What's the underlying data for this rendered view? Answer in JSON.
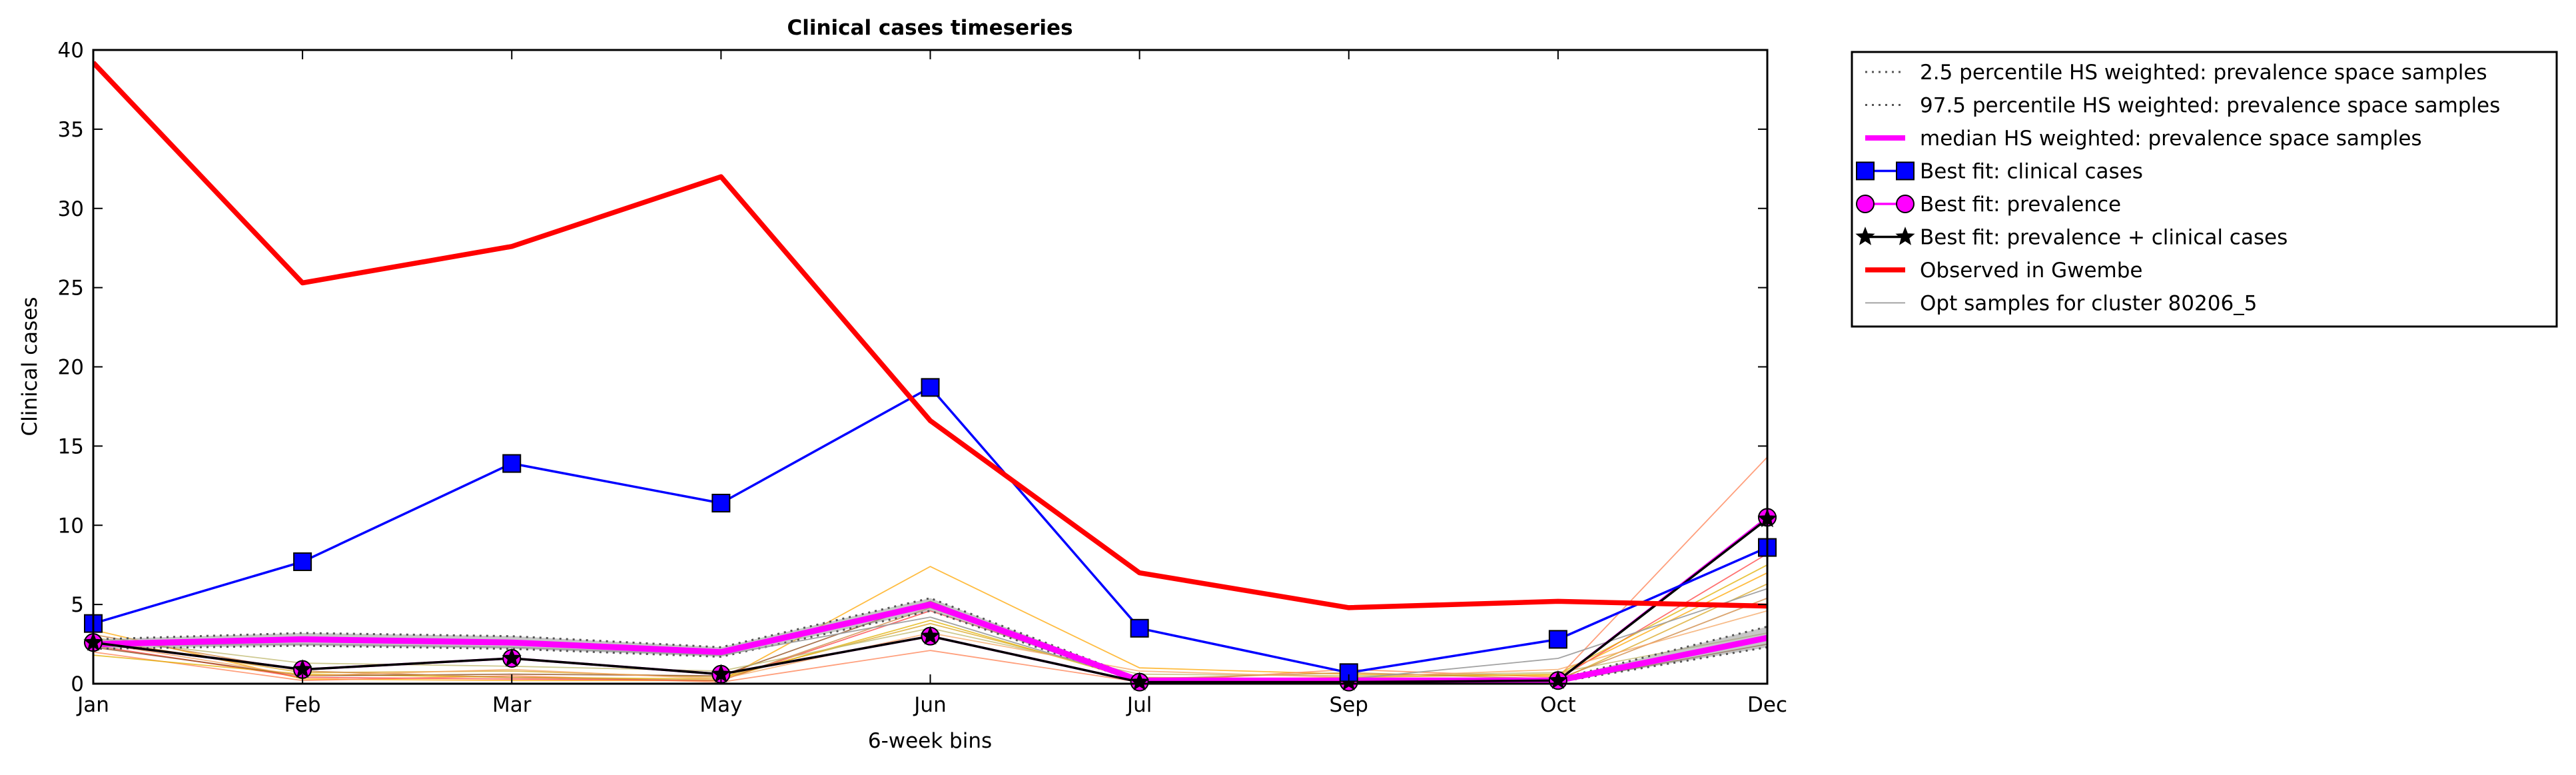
{
  "chart_data": {
    "type": "line",
    "title": "Clinical cases timeseries",
    "xlabel": "6-week bins",
    "ylabel": "Clinical cases",
    "categories": [
      "Jan",
      "Feb",
      "Mar",
      "May",
      "Jun",
      "Jul",
      "Sep",
      "Oct",
      "Dec"
    ],
    "ylim": [
      0,
      40
    ],
    "yticks": [
      0,
      5,
      10,
      15,
      20,
      25,
      30,
      35,
      40
    ],
    "grid": false,
    "legend_position": "outside-right-top",
    "series": [
      {
        "name": "2.5 percentile HS weighted: prevalence space samples",
        "style": "dotted",
        "color": "#555555",
        "marker": "none",
        "values": [
          2.2,
          2.4,
          2.2,
          1.7,
          4.6,
          0.1,
          0.1,
          0.1,
          2.3
        ]
      },
      {
        "name": "97.5 percentile HS weighted: prevalence space samples",
        "style": "dotted",
        "color": "#555555",
        "marker": "none",
        "values": [
          2.8,
          3.2,
          3.0,
          2.3,
          5.4,
          0.3,
          0.3,
          0.3,
          3.6
        ]
      },
      {
        "name": "median HS weighted: prevalence space samples",
        "style": "solid",
        "color": "#ff00ff",
        "marker": "none",
        "values": [
          2.5,
          2.8,
          2.6,
          2.0,
          5.0,
          0.2,
          0.2,
          0.2,
          2.9
        ]
      },
      {
        "name": "Best fit: clinical cases",
        "style": "solid",
        "color": "#0000ff",
        "marker": "square",
        "values": [
          3.8,
          7.7,
          13.9,
          11.4,
          18.7,
          3.5,
          0.7,
          2.8,
          8.6
        ]
      },
      {
        "name": "Best fit: prevalence",
        "style": "solid",
        "color": "#ff00ff",
        "marker": "circle",
        "values": [
          2.6,
          0.9,
          1.6,
          0.6,
          3.0,
          0.1,
          0.1,
          0.2,
          10.5
        ]
      },
      {
        "name": "Best fit: prevalence + clinical cases",
        "style": "solid",
        "color": "#000000",
        "marker": "star",
        "values": [
          2.6,
          0.9,
          1.6,
          0.6,
          3.0,
          0.1,
          0.1,
          0.2,
          10.4
        ]
      },
      {
        "name": "Observed in Gwembe",
        "style": "solid-thick",
        "color": "#ff0000",
        "marker": "none",
        "values": [
          39.2,
          25.3,
          27.6,
          32.0,
          16.6,
          7.0,
          4.8,
          5.2,
          4.9
        ]
      },
      {
        "name": "Opt samples for cluster 80206_5",
        "style": "thin",
        "color": "#999999",
        "marker": "none",
        "values": [
          2.4,
          2.5,
          2.3,
          1.8,
          4.2,
          0.2,
          0.3,
          1.6,
          6.0
        ]
      }
    ],
    "opt_samples": {
      "colors": [
        "#ffa500",
        "#ff7f50",
        "#ff4040",
        "#daa520",
        "#e0b000",
        "#8b4513",
        "#bdb76b",
        "#cd853f",
        "#f4a460",
        "#999999"
      ],
      "samples": [
        [
          3.4,
          0.3,
          0.2,
          0.2,
          7.4,
          1.0,
          0.6,
          0.5,
          7.0
        ],
        [
          2.0,
          0.2,
          0.5,
          0.1,
          2.1,
          0.1,
          0.9,
          0.4,
          14.3
        ],
        [
          2.4,
          0.4,
          0.3,
          0.2,
          4.6,
          0.3,
          0.2,
          0.3,
          8.2
        ],
        [
          2.8,
          0.7,
          0.8,
          0.4,
          3.8,
          0.4,
          0.3,
          0.2,
          6.3
        ],
        [
          1.8,
          0.6,
          0.4,
          0.3,
          4.0,
          0.2,
          0.4,
          0.6,
          7.5
        ],
        [
          2.3,
          0.5,
          0.6,
          0.5,
          5.2,
          0.1,
          0.1,
          0.1,
          2.5
        ],
        [
          2.9,
          1.3,
          1.1,
          0.8,
          3.5,
          0.6,
          0.5,
          0.7,
          3.2
        ],
        [
          3.1,
          0.8,
          0.4,
          0.2,
          4.8,
          0.3,
          0.7,
          0.3,
          5.4
        ],
        [
          2.6,
          0.5,
          0.9,
          0.3,
          3.2,
          0.8,
          0.4,
          0.9,
          4.6
        ]
      ]
    }
  }
}
